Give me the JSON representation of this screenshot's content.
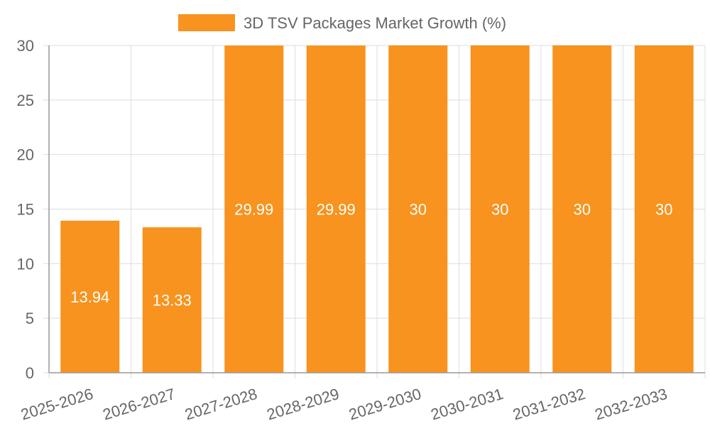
{
  "chart_data": {
    "type": "bar",
    "categories": [
      "2025-2026",
      "2026-2027",
      "2027-2028",
      "2028-2029",
      "2029-2030",
      "2030-2031",
      "2031-2032",
      "2032-2033"
    ],
    "series": [
      {
        "name": "3D TSV Packages Market Growth (%)",
        "values": [
          13.94,
          13.33,
          29.99,
          29.99,
          30,
          30,
          30,
          30
        ],
        "color": "#f7931e"
      }
    ],
    "data_labels": [
      "13.94",
      "13.33",
      "29.99",
      "29.99",
      "30",
      "30",
      "30",
      "30"
    ],
    "y_ticks": [
      "0",
      "5",
      "10",
      "15",
      "20",
      "25",
      "30"
    ],
    "ylim": [
      0,
      30
    ],
    "grid": true,
    "legend_position": "top"
  }
}
